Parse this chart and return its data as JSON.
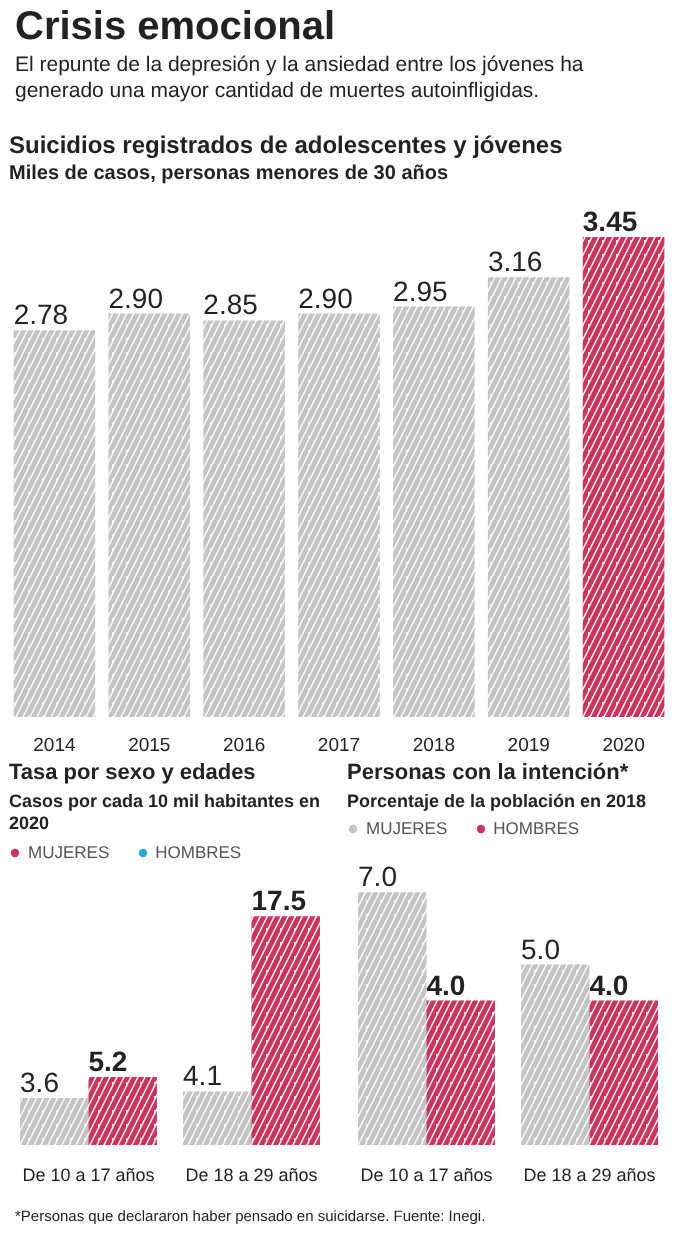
{
  "chart_data": [
    {
      "type": "other",
      "title": "Crisis emocional",
      "subtitle": "El repunte de la depresión y la ansiedad entre los jóvenes ha generado una mayor cantidad de muertes autoinfligidas."
    },
    {
      "type": "bar",
      "title": "Suicidios registrados de adolescentes y jóvenes",
      "subtitle": "Miles de casos, personas menores de 30 años",
      "categories": [
        "2014",
        "2015",
        "2016",
        "2017",
        "2018",
        "2019",
        "2020"
      ],
      "values": [
        2.78,
        2.9,
        2.85,
        2.9,
        2.95,
        3.16,
        3.45
      ],
      "value_labels": [
        "2.78",
        "2.90",
        "2.85",
        "2.90",
        "2.95",
        "3.16",
        "3.45"
      ],
      "colors": [
        "#c4c4c4",
        "#c4c4c4",
        "#c4c4c4",
        "#c4c4c4",
        "#c4c4c4",
        "#c4c4c4",
        "#c8365f"
      ]
    },
    {
      "type": "bar",
      "title": "Tasa por sexo y edades",
      "subtitle": "Casos por cada 10 mil habitantes en 2020",
      "legend": "top left",
      "categories": [
        "De 10 a 17 años",
        "De 18 a 29 años"
      ],
      "series": [
        {
          "color": "#c4c4c4",
          "values": [
            3.6,
            4.1
          ],
          "value_labels": [
            "3.6",
            "4.1"
          ]
        },
        {
          "name": "MUJERES",
          "color": "#c8365f",
          "values": [
            5.2,
            17.5
          ],
          "value_labels": [
            "5.2",
            "17.5"
          ]
        },
        {
          "name": "HOMBRES",
          "color": "#2aa8d8",
          "values": [
            null,
            null
          ]
        }
      ]
    },
    {
      "type": "bar",
      "title": "Personas con la intención*",
      "subtitle": "Porcentaje de la población en 2018",
      "legend": "top left",
      "categories": [
        "De 10 a 17 años",
        "De 18 a 29 años"
      ],
      "series": [
        {
          "name": "MUJERES",
          "color": "#c4c4c4",
          "values": [
            7.0,
            5.0
          ],
          "value_labels": [
            "7.0",
            "5.0"
          ]
        },
        {
          "name": "HOMBRES",
          "color": "#c8365f",
          "values": [
            4.0,
            4.0
          ],
          "value_labels": [
            "4.0",
            "4.0"
          ]
        }
      ]
    },
    {
      "type": "other",
      "annotations": [
        "*Personas que declararon haber pensado en suicidarse. Fuente: Inegi."
      ]
    }
  ]
}
